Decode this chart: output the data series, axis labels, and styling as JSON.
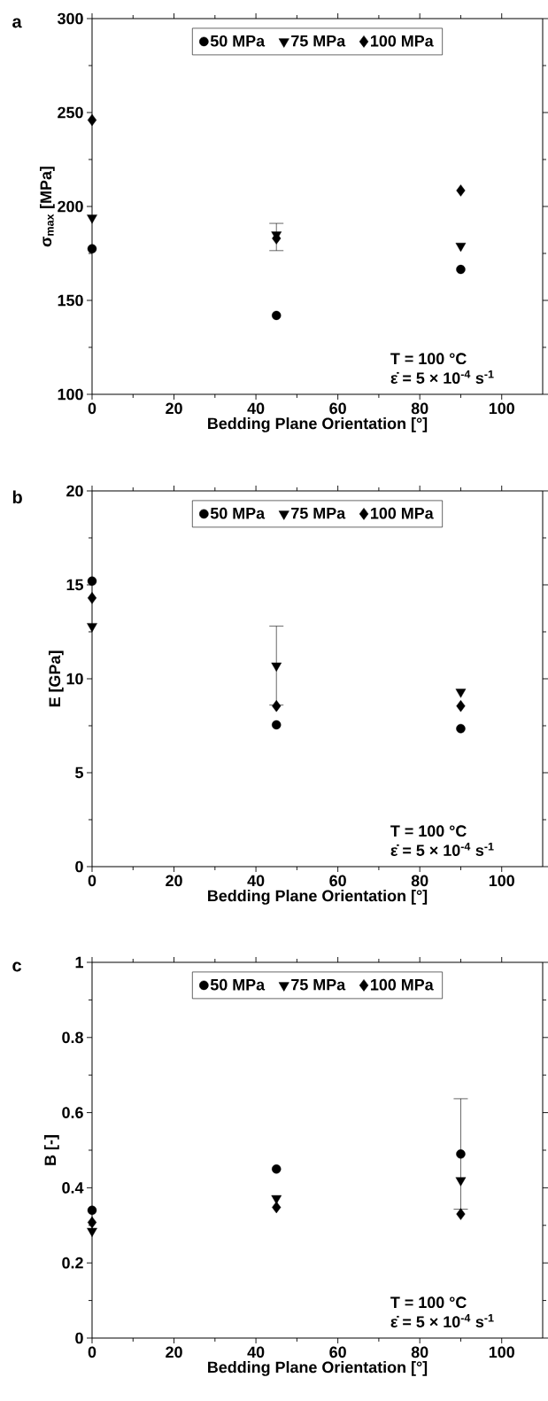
{
  "chart_data": [
    {
      "type": "scatter",
      "title": "a",
      "xlabel": "Bedding Plane Orientation [°]",
      "ylabel": "σ$_{max}$ [MPa]",
      "x": [
        0,
        45,
        90
      ],
      "xlim": [
        0,
        110
      ],
      "xticks": [
        0,
        20,
        40,
        60,
        80,
        100
      ],
      "ylim": [
        100,
        300
      ],
      "yticks": [
        100,
        150,
        200,
        250,
        300
      ],
      "legend": "top",
      "annotations": [
        "T = 100 °C",
        "ε̇ = 5 × 10$^{-4}$ s$^{-1}$"
      ],
      "series": [
        {
          "name": "50 MPa",
          "color": "#000000",
          "marker": "circle",
          "values": [
            177.5,
            142,
            166.5
          ]
        },
        {
          "name": "75 MPa",
          "color": "#000000",
          "marker": "triangle",
          "values": [
            194,
            185,
            179
          ]
        },
        {
          "name": "100 MPa",
          "color": "#000000",
          "marker": "diamond",
          "values": [
            246,
            183,
            208.5
          ],
          "errors": [
            null,
            [
              176.5,
              191
            ],
            null
          ]
        }
      ]
    },
    {
      "type": "scatter",
      "title": "b",
      "xlabel": "Bedding Plane Orientation [°]",
      "ylabel": "E [GPa]",
      "x": [
        0,
        45,
        90
      ],
      "xlim": [
        0,
        110
      ],
      "xticks": [
        0,
        20,
        40,
        60,
        80,
        100
      ],
      "ylim": [
        0,
        20
      ],
      "yticks": [
        0,
        5,
        10,
        15,
        20
      ],
      "legend": "top",
      "annotations": [
        "T = 100 °C",
        "ε̇ = 5 × 10$^{-4}$ s$^{-1}$"
      ],
      "series": [
        {
          "name": "50 MPa",
          "color": "#000000",
          "marker": "circle",
          "values": [
            15.2,
            7.55,
            7.35
          ]
        },
        {
          "name": "75 MPa",
          "color": "#000000",
          "marker": "triangle",
          "values": [
            12.8,
            10.7,
            9.3
          ],
          "errors": [
            null,
            2.1,
            null
          ]
        },
        {
          "name": "100 MPa",
          "color": "#000000",
          "marker": "diamond",
          "values": [
            14.3,
            8.55,
            8.55
          ]
        }
      ]
    },
    {
      "type": "scatter",
      "title": "c",
      "xlabel": "Bedding Plane Orientation [°]",
      "ylabel": "B [-]",
      "x": [
        0,
        45,
        90
      ],
      "xlim": [
        0,
        110
      ],
      "xticks": [
        0,
        20,
        40,
        60,
        80,
        100
      ],
      "ylim": [
        0,
        1
      ],
      "yticks": [
        0,
        0.2,
        0.4,
        0.6,
        0.8,
        1
      ],
      "legend": "top",
      "annotations": [
        "T = 100 °C",
        "ε̇ = 5 × 10$^{-4}$ s$^{-1}$"
      ],
      "series": [
        {
          "name": "50 MPa",
          "color": "#000000",
          "marker": "circle",
          "values": [
            0.34,
            0.45,
            0.49
          ],
          "errors": [
            null,
            null,
            0.147
          ]
        },
        {
          "name": "75 MPa",
          "color": "#000000",
          "marker": "triangle",
          "values": [
            0.285,
            0.372,
            0.42
          ]
        },
        {
          "name": "100 MPa",
          "color": "#000000",
          "marker": "diamond",
          "values": [
            0.308,
            0.348,
            0.33
          ]
        }
      ]
    }
  ]
}
